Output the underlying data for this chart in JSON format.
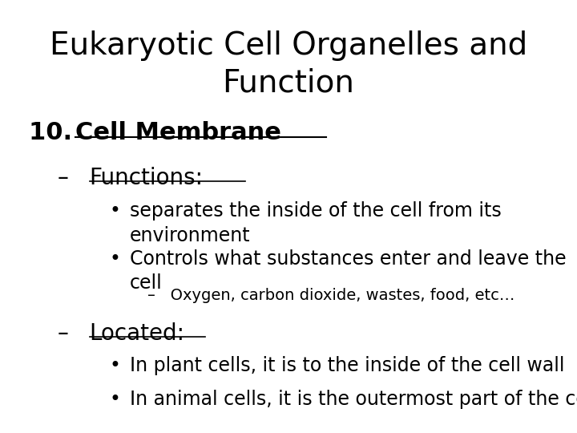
{
  "title_line1": "Eukaryotic Cell Organelles and",
  "title_line2": "Function",
  "title_fontsize": 28,
  "title_fontfamily": "DejaVu Sans",
  "background_color": "#ffffff",
  "text_color": "#000000",
  "section_number": "10.",
  "section_label": "Cell Membrane",
  "section_fontsize": 22,
  "subsection1_dash": "–",
  "subsection1_label": "Functions:",
  "subsection1_fontsize": 20,
  "bullet1_text_line1": "separates the inside of the cell from its",
  "bullet1_text_line2": "environment",
  "bullet2_text_line1": "Controls what substances enter and leave the",
  "bullet2_text_line2": "cell",
  "sub_dash_text": "–   Oxygen, carbon dioxide, wastes, food, etc…",
  "subsection2_dash": "–",
  "subsection2_label": "Located:",
  "subsection2_fontsize": 20,
  "located_bullet1": "In plant cells, it is to the inside of the cell wall",
  "located_bullet2": "In animal cells, it is the outermost part of the cell",
  "bullet_fontsize": 17,
  "sub_bullet_fontsize": 14
}
